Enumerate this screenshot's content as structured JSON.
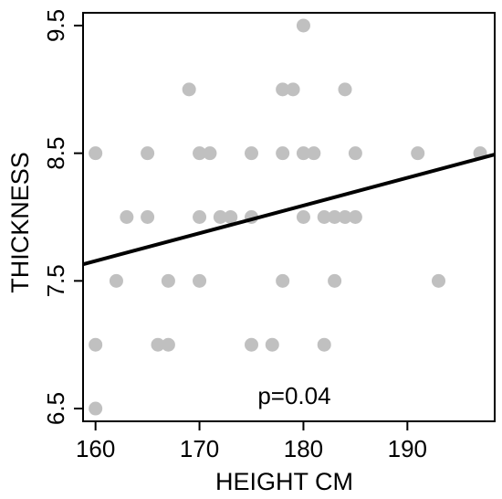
{
  "chart_data": {
    "type": "scatter",
    "xlabel": "HEIGHT CM",
    "ylabel": "THICKNESS",
    "xlim": [
      158.8,
      198.4
    ],
    "ylim": [
      6.4,
      9.6
    ],
    "x_ticks": [
      160,
      170,
      180,
      190
    ],
    "x_tick_labels": [
      "160",
      "170",
      "180",
      "190"
    ],
    "y_ticks": [
      6.5,
      7.5,
      8.5,
      9.5
    ],
    "y_tick_labels": [
      "6.5",
      "7.5",
      "8.5",
      "9.5"
    ],
    "grid": false,
    "annotation": {
      "text": "p=0.04",
      "x": 180,
      "y": 6.6
    },
    "point_color": "#c0c0c0",
    "line_color": "#000000",
    "points": [
      {
        "x": 160,
        "y": 8.5
      },
      {
        "x": 160,
        "y": 7.0
      },
      {
        "x": 160,
        "y": 6.5
      },
      {
        "x": 162,
        "y": 7.5
      },
      {
        "x": 163,
        "y": 8.0
      },
      {
        "x": 165,
        "y": 8.5
      },
      {
        "x": 165,
        "y": 8.0
      },
      {
        "x": 166,
        "y": 7.0
      },
      {
        "x": 167,
        "y": 7.5
      },
      {
        "x": 167,
        "y": 7.0
      },
      {
        "x": 169,
        "y": 9.0
      },
      {
        "x": 170,
        "y": 8.5
      },
      {
        "x": 170,
        "y": 8.0
      },
      {
        "x": 170,
        "y": 7.5
      },
      {
        "x": 171,
        "y": 8.5
      },
      {
        "x": 172,
        "y": 8.0
      },
      {
        "x": 173,
        "y": 8.0
      },
      {
        "x": 175,
        "y": 8.5
      },
      {
        "x": 175,
        "y": 8.0
      },
      {
        "x": 175,
        "y": 7.0
      },
      {
        "x": 177,
        "y": 7.0
      },
      {
        "x": 178,
        "y": 9.0
      },
      {
        "x": 178,
        "y": 8.5
      },
      {
        "x": 178,
        "y": 7.5
      },
      {
        "x": 179,
        "y": 9.0
      },
      {
        "x": 180,
        "y": 9.5
      },
      {
        "x": 180,
        "y": 8.5
      },
      {
        "x": 180,
        "y": 8.0
      },
      {
        "x": 181,
        "y": 8.5
      },
      {
        "x": 182,
        "y": 8.0
      },
      {
        "x": 182,
        "y": 7.0
      },
      {
        "x": 183,
        "y": 8.0
      },
      {
        "x": 183,
        "y": 7.5
      },
      {
        "x": 184,
        "y": 9.0
      },
      {
        "x": 184,
        "y": 8.0
      },
      {
        "x": 185,
        "y": 8.5
      },
      {
        "x": 185,
        "y": 8.0
      },
      {
        "x": 191,
        "y": 8.5
      },
      {
        "x": 193,
        "y": 7.5
      },
      {
        "x": 197,
        "y": 8.5
      }
    ],
    "fit_line": {
      "x": [
        158.8,
        198.4
      ],
      "y": [
        7.63,
        8.49
      ]
    }
  }
}
